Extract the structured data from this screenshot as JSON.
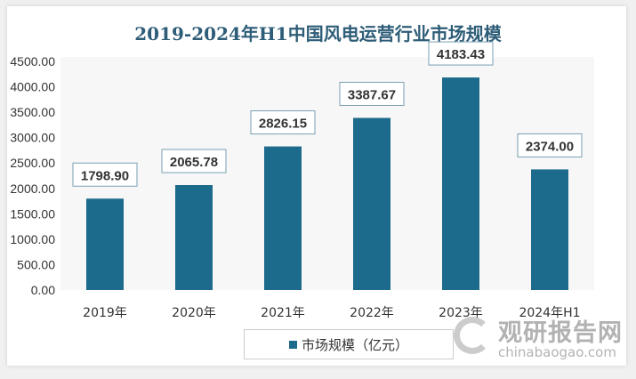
{
  "chart_data": {
    "type": "bar",
    "title": "2019-2024年H1中国风电运营行业市场规模",
    "categories": [
      "2019年",
      "2020年",
      "2021年",
      "2022年",
      "2023年",
      "2024年H1"
    ],
    "series": [
      {
        "name": "市场规模（亿元）",
        "values": [
          1798.9,
          2065.78,
          2826.15,
          3387.67,
          4183.43,
          2374.0
        ]
      }
    ],
    "data_labels": [
      "1798.90",
      "2065.78",
      "2826.15",
      "3387.67",
      "4183.43",
      "2374.00"
    ],
    "yticks": [
      "0.00",
      "500.00",
      "1000.00",
      "1500.00",
      "2000.00",
      "2500.00",
      "3000.00",
      "3500.00",
      "4000.00",
      "4500.00"
    ],
    "ylim": [
      0,
      4500
    ],
    "grid": false,
    "legend": "bottom",
    "bar_color": "#1c6a8c"
  },
  "watermark": {
    "cn": "观研报告网",
    "en": "chinabaogao.com"
  }
}
